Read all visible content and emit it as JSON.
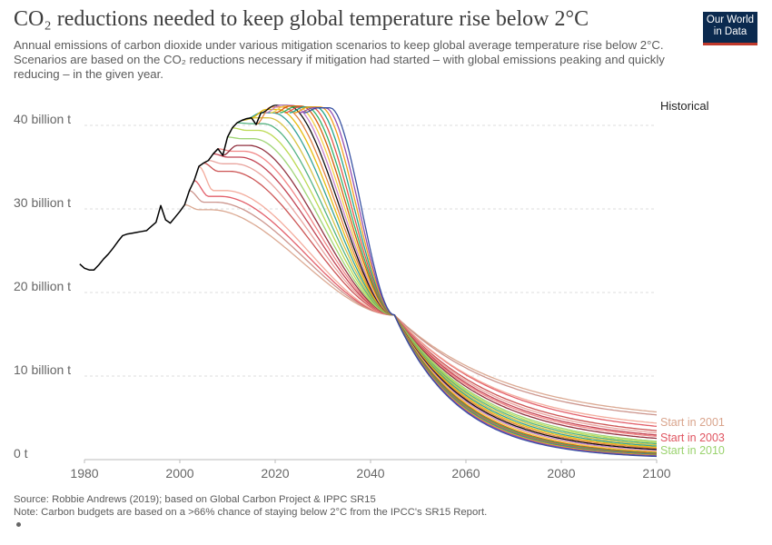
{
  "header": {
    "title": "CO₂ reductions needed to keep global temperature rise below 2°C",
    "subtitle": "Annual emissions of carbon dioxide under various mitigation scenarios to keep global average temperature rise below 2°C. Scenarios are based on the CO₂ reductions necessary if mitigation had started – with global emissions peaking and quickly reducing – in the given year.",
    "logo_line1": "Our World",
    "logo_line2": "in Data"
  },
  "footer": {
    "source": "Source: Robbie Andrews (2019); based on Global Carbon Project & IPPC SR15",
    "note": "Note: Carbon budgets are based on a >66% chance of staying below 2°C from the IPCC's SR15 Report."
  },
  "colors": {
    "historical": "#000000",
    "axis_text": "#666666",
    "grid": "#dddddd"
  },
  "chart_data": {
    "type": "line",
    "title": "CO₂ reductions needed to keep global temperature rise below 2°C",
    "xlim": [
      1980,
      2100
    ],
    "ylim": [
      0,
      40
    ],
    "x_ticks": [
      1980,
      2000,
      2020,
      2040,
      2060,
      2080,
      2100
    ],
    "y_ticks": [
      0,
      10,
      20,
      30,
      40
    ],
    "y_tick_labels": [
      "0 t",
      "10 billion t",
      "20 billion t",
      "30 billion t",
      "40 billion t"
    ],
    "grid": "horizontal dashed",
    "legend": "labels at right end of lines",
    "crossover": {
      "year": 2045,
      "value": 17.3
    },
    "historical": {
      "name": "Historical",
      "x": [
        1979,
        1980,
        1981,
        1982,
        1983,
        1984,
        1985,
        1986,
        1987,
        1988,
        1989,
        1990,
        1991,
        1992,
        1993,
        1994,
        1995,
        1996,
        1997,
        1998,
        1999,
        2000,
        2001,
        2002,
        2003,
        2004,
        2005,
        2006,
        2007,
        2008,
        2009,
        2010,
        2011,
        2012,
        2013,
        2014,
        2015,
        2016,
        2017
      ],
      "values": [
        23.4,
        22.9,
        22.7,
        22.7,
        23.3,
        24.0,
        24.6,
        25.3,
        26.1,
        26.8,
        27.0,
        27.1,
        27.2,
        27.3,
        27.4,
        27.9,
        28.4,
        30.4,
        28.7,
        28.3,
        29.0,
        29.7,
        30.5,
        32.2,
        33.4,
        35.1,
        35.5,
        35.8,
        36.6,
        37.2,
        36.4,
        38.6,
        39.7,
        40.3,
        40.6,
        40.8,
        40.9,
        40.1,
        41.5
      ]
    },
    "series": [
      {
        "name": "Start in 2001",
        "start": 2001,
        "peak": 29.9,
        "at2100": 4.5,
        "color": "#d9a48c"
      },
      {
        "start": 2002,
        "peak": 30.8,
        "at2100": 4.2,
        "color": "#c98f87"
      },
      {
        "name": "Start in 2003",
        "start": 2003,
        "peak": 31.5,
        "at2100": 2.8,
        "color": "#e05561"
      },
      {
        "start": 2004,
        "peak": 32.2,
        "at2100": 3.3,
        "color": "#f2a697"
      },
      {
        "start": 2005,
        "peak": 34.5,
        "at2100": 2.4,
        "color": "#c94b4b"
      },
      {
        "start": 2006,
        "peak": 35.4,
        "at2100": 2.2,
        "color": "#e8a09a"
      },
      {
        "start": 2007,
        "peak": 36.2,
        "at2100": 2.0,
        "color": "#bf3a4a"
      },
      {
        "start": 2008,
        "peak": 36.9,
        "at2100": 1.9,
        "color": "#f08080"
      },
      {
        "start": 2009,
        "peak": 37.6,
        "at2100": 1.7,
        "color": "#8b2635"
      },
      {
        "name": "Start in 2010",
        "start": 2010,
        "peak": 38.4,
        "at2100": 1.4,
        "color": "#9ad26e"
      },
      {
        "start": 2011,
        "peak": 39.4,
        "at2100": 1.3,
        "color": "#b8d84a"
      },
      {
        "start": 2012,
        "peak": 40.2,
        "at2100": 1.2,
        "color": "#4caf7a"
      },
      {
        "start": 2013,
        "peak": 40.9,
        "at2100": 1.1,
        "color": "#d6c13c"
      },
      {
        "start": 2014,
        "peak": 41.5,
        "at2100": 1.0,
        "color": "#2a9d8f"
      },
      {
        "start": 2015,
        "peak": 41.9,
        "at2100": 0.9,
        "color": "#e6b800"
      },
      {
        "start": 2016,
        "peak": 42.2,
        "at2100": 0.8,
        "color": "#e07b39"
      },
      {
        "start": 2017,
        "peak": 42.4,
        "at2100": 0.7,
        "color": "#000000"
      },
      {
        "start": 2018,
        "peak": 42.4,
        "at2100": 0.6,
        "color": "#c27bc9"
      },
      {
        "start": 2019,
        "peak": 42.3,
        "at2100": 0.5,
        "color": "#f4d03f"
      },
      {
        "start": 2020,
        "peak": 42.3,
        "at2100": 0.4,
        "color": "#d35400"
      },
      {
        "start": 2021,
        "peak": 42.2,
        "at2100": 0.35,
        "color": "#27ae60"
      },
      {
        "start": 2022,
        "peak": 42.2,
        "at2100": 0.3,
        "color": "#e74c3c"
      },
      {
        "start": 2023,
        "peak": 42.2,
        "at2100": 0.25,
        "color": "#16a085"
      },
      {
        "start": 2024,
        "peak": 42.2,
        "at2100": 0.2,
        "color": "#f39c12"
      },
      {
        "start": 2025,
        "peak": 42.1,
        "at2100": 0.15,
        "color": "#8e44ad"
      },
      {
        "start": 2026,
        "peak": 42.1,
        "at2100": 0.1,
        "color": "#2e4a9e"
      }
    ],
    "labels": {
      "historical": "Historical",
      "start_2001": "Start in 2001",
      "start_2003": "Start in 2003",
      "start_2010": "Start in 2010"
    }
  }
}
